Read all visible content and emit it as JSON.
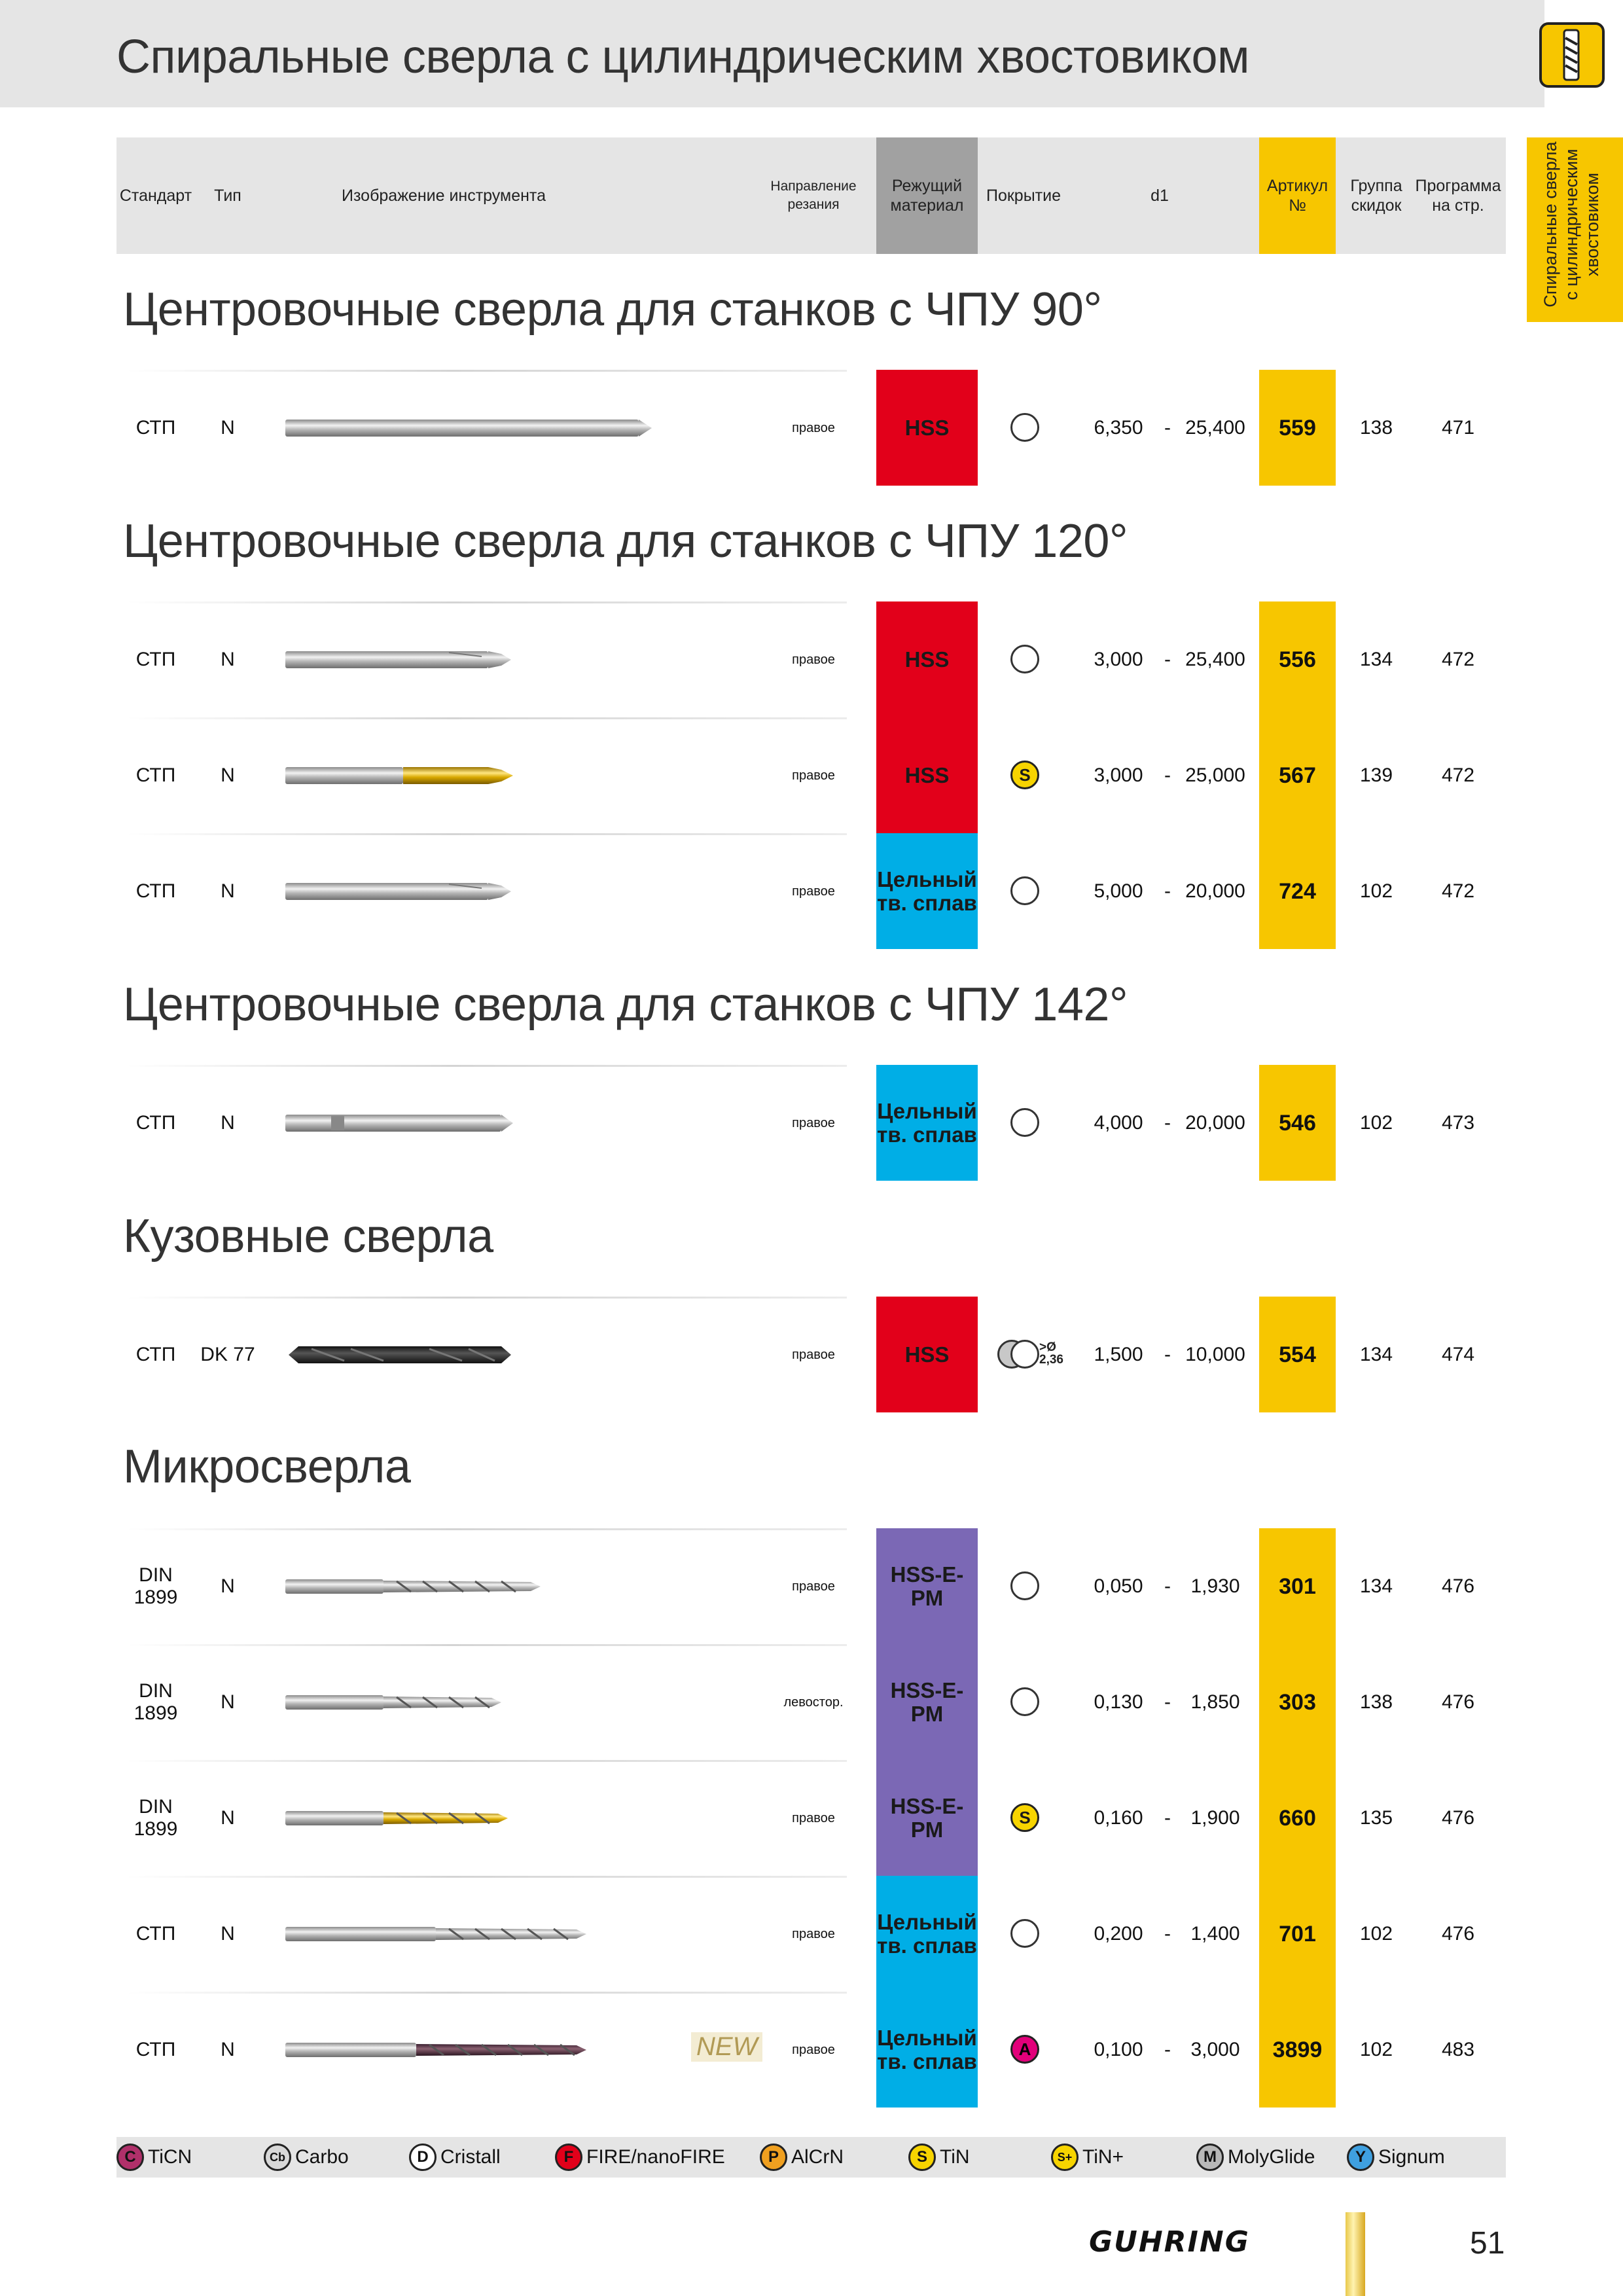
{
  "page": {
    "title": "Спиральные сверла с цилиндрическим хвостовиком",
    "side_tab": [
      "Спиральные сверла",
      "с цилиндрическим",
      "хвостовиком"
    ],
    "page_number": "51",
    "brand": "GUHRING"
  },
  "header": {
    "standard": "Стандарт",
    "type": "Тип",
    "image": "Изображение инструмента",
    "direction": "Направление резания",
    "material": "Режущий материал",
    "coating": "Покрытие",
    "d1": "d1",
    "article": "Артикул №",
    "discount": "Группа скидок",
    "program": "Программа на стр."
  },
  "sections": [
    {
      "title": "Центровочные сверла для станков с ЧПУ 90°",
      "rows": [
        {
          "standard": "СТП",
          "type": "N",
          "direction": "правое",
          "material": "HSS",
          "material_color": "#e2001a",
          "coating": "none",
          "d1_min": "6,350",
          "dash": "-",
          "d1_max": "25,400",
          "article": "559",
          "discount": "138",
          "program": "471",
          "tool": "center-90"
        }
      ]
    },
    {
      "title": "Центровочные сверла для станков с ЧПУ 120°",
      "rows": [
        {
          "standard": "СТП",
          "type": "N",
          "direction": "правое",
          "material": "HSS",
          "material_color": "#e2001a",
          "coating": "none",
          "d1_min": "3,000",
          "dash": "-",
          "d1_max": "25,400",
          "article": "556",
          "discount": "134",
          "program": "472",
          "tool": "center-120"
        },
        {
          "standard": "СТП",
          "type": "N",
          "direction": "правое",
          "material": "HSS",
          "material_color": "#e2001a",
          "coating": "S",
          "d1_min": "3,000",
          "dash": "-",
          "d1_max": "25,000",
          "article": "567",
          "discount": "139",
          "program": "472",
          "tool": "center-120-gold"
        },
        {
          "standard": "СТП",
          "type": "N",
          "direction": "правое",
          "material": "Цельный тв. сплав",
          "material_color": "#00aee6",
          "coating": "none",
          "d1_min": "5,000",
          "dash": "-",
          "d1_max": "20,000",
          "article": "724",
          "discount": "102",
          "program": "472",
          "tool": "center-120"
        }
      ]
    },
    {
      "title": "Центровочные сверла для станков с ЧПУ 142°",
      "rows": [
        {
          "standard": "СТП",
          "type": "N",
          "direction": "правое",
          "material": "Цельный тв. сплав",
          "material_color": "#00aee6",
          "coating": "none",
          "d1_min": "4,000",
          "dash": "-",
          "d1_max": "20,000",
          "article": "546",
          "discount": "102",
          "program": "473",
          "tool": "center-142"
        }
      ]
    },
    {
      "title": "Кузовные сверла",
      "rows": [
        {
          "standard": "СТП",
          "type": "DK 77",
          "direction": "правое",
          "material": "HSS",
          "material_color": "#e2001a",
          "coating": "double",
          "coating_note": ">Ø 2,36",
          "d1_min": "1,500",
          "dash": "-",
          "d1_max": "10,000",
          "article": "554",
          "discount": "134",
          "program": "474",
          "tool": "body-drill"
        }
      ]
    },
    {
      "title": "Микросверла",
      "rows": [
        {
          "standard": "DIN 1899",
          "type": "N",
          "direction": "правое",
          "material": "HSS-E-PM",
          "material_color": "#7b68b5",
          "coating": "none",
          "d1_min": "0,050",
          "dash": "-",
          "d1_max": "1,930",
          "article": "301",
          "discount": "134",
          "program": "476",
          "tool": "micro"
        },
        {
          "standard": "DIN 1899",
          "type": "N",
          "direction": "левостор.",
          "material": "HSS-E-PM",
          "material_color": "#7b68b5",
          "coating": "none",
          "d1_min": "0,130",
          "dash": "-",
          "d1_max": "1,850",
          "article": "303",
          "discount": "138",
          "program": "476",
          "tool": "micro-short"
        },
        {
          "standard": "DIN 1899",
          "type": "N",
          "direction": "правое",
          "material": "HSS-E-PM",
          "material_color": "#7b68b5",
          "coating": "S",
          "d1_min": "0,160",
          "dash": "-",
          "d1_max": "1,900",
          "article": "660",
          "discount": "135",
          "program": "476",
          "tool": "micro-gold"
        },
        {
          "standard": "СТП",
          "type": "N",
          "direction": "правое",
          "material": "Цельный тв. сплав",
          "material_color": "#00aee6",
          "coating": "none",
          "d1_min": "0,200",
          "dash": "-",
          "d1_max": "1,400",
          "article": "701",
          "discount": "102",
          "program": "476",
          "tool": "micro-long"
        },
        {
          "standard": "СТП",
          "type": "N",
          "direction": "правое",
          "material": "Цельный тв. сплав",
          "material_color": "#00aee6",
          "coating": "A",
          "d1_min": "0,100",
          "dash": "-",
          "d1_max": "3,000",
          "article": "3899",
          "discount": "102",
          "program": "483",
          "tool": "micro-dark",
          "new": "NEW"
        }
      ]
    }
  ],
  "legend": [
    {
      "symbol": "C",
      "label": "TiCN",
      "color": "#b0306a"
    },
    {
      "symbol": "Cb",
      "label": "Carbo",
      "color": "#d8d8d8"
    },
    {
      "symbol": "D",
      "label": "Cristall",
      "color": "#ffffff"
    },
    {
      "symbol": "F",
      "label": "FIRE/nanoFIRE",
      "color": "#e2001a"
    },
    {
      "symbol": "P",
      "label": "AlCrN",
      "color": "#f0a020"
    },
    {
      "symbol": "S",
      "label": "TiN",
      "color": "#f7d400"
    },
    {
      "symbol": "S+",
      "label": "TiN+",
      "color": "#f7d400"
    },
    {
      "symbol": "M",
      "label": "MolyGlide",
      "color": "#b8b8b8"
    },
    {
      "symbol": "Y",
      "label": "Signum",
      "color": "#3fa0e0"
    }
  ]
}
